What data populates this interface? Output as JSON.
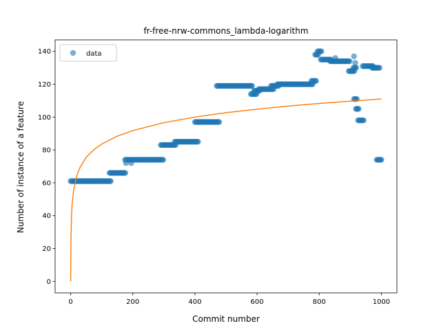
{
  "chart_data": {
    "type": "scatter",
    "title": "fr-free-nrw-commons_lambda-logarithm",
    "xlabel": "Commit number",
    "ylabel": "Number of instance of a feature",
    "xlim": [
      -50,
      1050
    ],
    "ylim": [
      -7,
      147
    ],
    "xticks": [
      0,
      200,
      400,
      600,
      800,
      1000
    ],
    "yticks": [
      0,
      20,
      40,
      60,
      80,
      100,
      120,
      140
    ],
    "grid": false,
    "legend": {
      "position": "top-left",
      "entries": [
        "data"
      ]
    },
    "colors": {
      "data": "#1f77b4",
      "fit": "#ff7f0e"
    },
    "series": [
      {
        "name": "data",
        "kind": "scatter",
        "segments": [
          {
            "x": [
              0,
              130
            ],
            "y": 61
          },
          {
            "x": [
              125,
              178
            ],
            "y": 66
          },
          {
            "x": [
              175,
              300
            ],
            "y": 74
          },
          {
            "x": [
              290,
              340
            ],
            "y": 83
          },
          {
            "x": [
              335,
              410
            ],
            "y": 85
          },
          {
            "x": [
              400,
              480
            ],
            "y": 97
          },
          {
            "x": [
              470,
              585
            ],
            "y": 119
          },
          {
            "x": [
              580,
              600
            ],
            "y": 114
          },
          {
            "x": [
              590,
              610
            ],
            "y": 116
          },
          {
            "x": [
              605,
              655
            ],
            "y": 117
          },
          {
            "x": [
              645,
              670
            ],
            "y": 119
          },
          {
            "x": [
              665,
              780
            ],
            "y": 120
          },
          {
            "x": [
              775,
              790
            ],
            "y": 122
          },
          {
            "x": [
              787,
              798
            ],
            "y": 138
          },
          {
            "x": [
              795,
              808
            ],
            "y": 140
          },
          {
            "x": [
              805,
              840
            ],
            "y": 135
          },
          {
            "x": [
              835,
              900
            ],
            "y": 134
          },
          {
            "x": [
              895,
              915
            ],
            "y": 128
          },
          {
            "x": [
              910,
              920
            ],
            "y": 130
          },
          {
            "x": [
              912,
              922
            ],
            "y": 111
          },
          {
            "x": [
              918,
              928
            ],
            "y": 105
          },
          {
            "x": [
              925,
              945
            ],
            "y": 98
          },
          {
            "x": [
              940,
              975
            ],
            "y": 131
          },
          {
            "x": [
              970,
              995
            ],
            "y": 130
          },
          {
            "x": [
              985,
              1002
            ],
            "y": 74
          }
        ],
        "extra_points": [
          {
            "x": 178,
            "y": 72
          },
          {
            "x": 195,
            "y": 72
          },
          {
            "x": 852,
            "y": 136
          },
          {
            "x": 912,
            "y": 137
          },
          {
            "x": 916,
            "y": 133
          }
        ]
      },
      {
        "kind": "line",
        "model": "logarithmic",
        "x": [
          0,
          1,
          3,
          5,
          10,
          20,
          30,
          50,
          75,
          100,
          150,
          200,
          300,
          400,
          500,
          600,
          700,
          800,
          900,
          1000
        ],
        "y": [
          0,
          25.8,
          41.0,
          47.6,
          56.0,
          64.4,
          69.3,
          75.5,
          80.2,
          83.6,
          88.4,
          91.8,
          96.6,
          100.0,
          102.7,
          104.8,
          106.7,
          108.3,
          109.7,
          111.0
        ]
      }
    ]
  }
}
